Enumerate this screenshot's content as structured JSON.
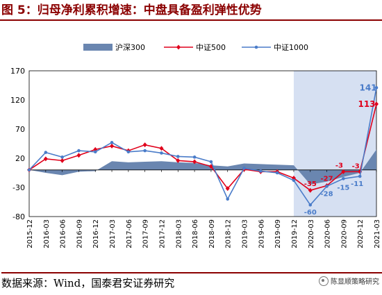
{
  "figure_title": "图 5：归母净利累积增速：中盘具备盈利弹性优势",
  "source_note": "数据来源：Wind，国泰君安证券研究",
  "watermark": "陈显顺策略研究",
  "colors": {
    "area": "#6a86b0",
    "red": "#e0001b",
    "blue": "#4a7cc9",
    "shade": "#d6e0f2",
    "title": "#8b0000"
  },
  "chart_data": {
    "type": "line",
    "title": "",
    "xlabel": "",
    "ylabel": "",
    "ylim": [
      -80,
      170
    ],
    "yticks": [
      -80,
      -30,
      20,
      70,
      120,
      170
    ],
    "grid": false,
    "legend_position": "top",
    "shaded_region": [
      "2019-12",
      "2021-03"
    ],
    "categories": [
      "2015-12",
      "2016-03",
      "2016-06",
      "2016-09",
      "2016-12",
      "2017-03",
      "2017-06",
      "2017-09",
      "2017-12",
      "2018-03",
      "2018-06",
      "2018-09",
      "2018-12",
      "2019-03",
      "2019-06",
      "2019-09",
      "2019-12",
      "2020-03",
      "2020-06",
      "2020-09",
      "2020-12",
      "2021-03"
    ],
    "series": [
      {
        "name": "沪深300",
        "kind": "area",
        "values": [
          0,
          -5,
          -9,
          -3,
          -2,
          15,
          13,
          14,
          15,
          13,
          12,
          8,
          6,
          11,
          10,
          9,
          8,
          -25,
          -20,
          -12,
          -5,
          35
        ]
      },
      {
        "name": "中证500",
        "kind": "line",
        "marker": "diamond",
        "values": [
          0,
          19,
          16,
          25,
          35,
          41,
          33,
          43,
          37,
          16,
          14,
          6,
          -32,
          1,
          -3,
          -3,
          -14,
          -35,
          -27,
          -3,
          -3,
          113
        ]
      },
      {
        "name": "中证1000",
        "kind": "line",
        "marker": "dot",
        "values": [
          0,
          30,
          22,
          33,
          31,
          47,
          31,
          33,
          29,
          23,
          22,
          14,
          -50,
          3,
          -2,
          -5,
          -18,
          -60,
          -28,
          -15,
          -11,
          141
        ]
      }
    ],
    "annotations": [
      {
        "series": "中证500",
        "x": "2020-03",
        "text": "-35"
      },
      {
        "series": "中证500",
        "x": "2020-06",
        "text": "-27"
      },
      {
        "series": "中证500",
        "x": "2020-09",
        "text": "-3"
      },
      {
        "series": "中证500",
        "x": "2020-12",
        "text": "-3"
      },
      {
        "series": "中证500",
        "x": "2021-03",
        "text": "113"
      },
      {
        "series": "中证1000",
        "x": "2020-03",
        "text": "-60"
      },
      {
        "series": "中证1000",
        "x": "2020-06",
        "text": "-28"
      },
      {
        "series": "中证1000",
        "x": "2020-09",
        "text": "-15"
      },
      {
        "series": "中证1000",
        "x": "2020-12",
        "text": "-11"
      },
      {
        "series": "中证1000",
        "x": "2021-03",
        "text": "141"
      }
    ]
  }
}
